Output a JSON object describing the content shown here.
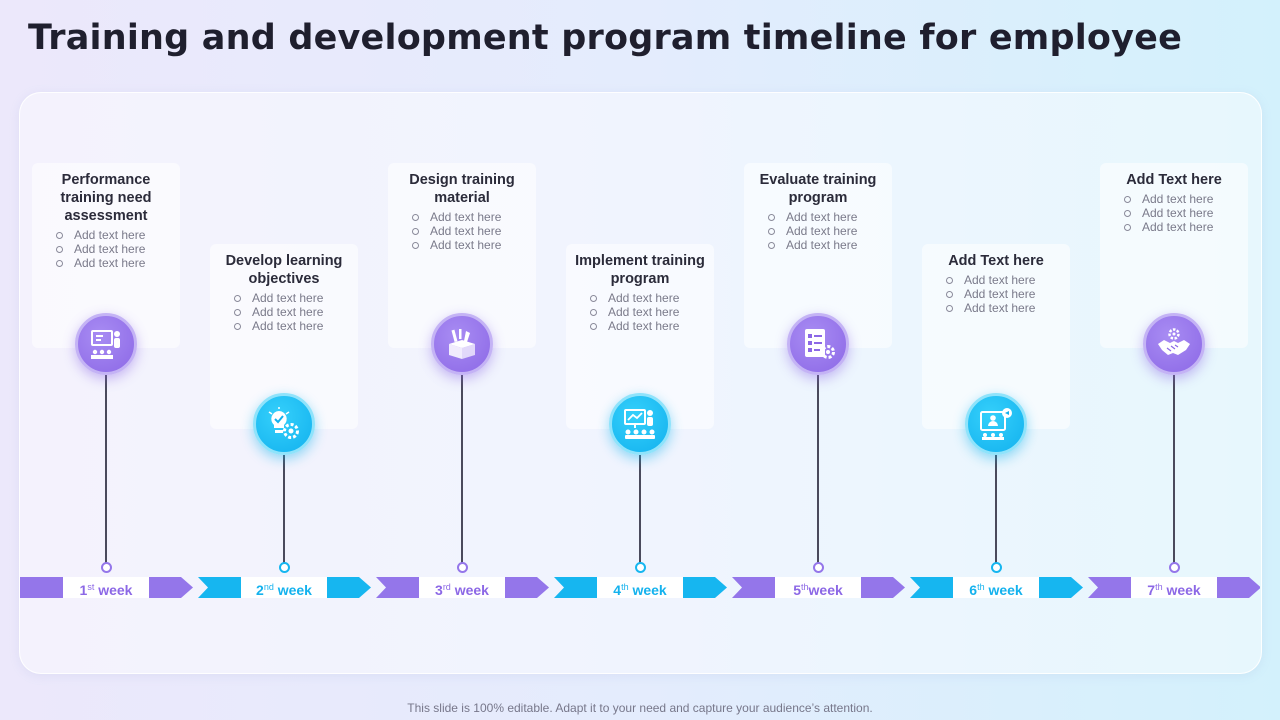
{
  "title": "Training and development program timeline for employee",
  "footer": "This slide is 100% editable. Adapt it to your need and capture your audience’s attention.",
  "colors": {
    "purple": "#8c68e6",
    "cyan": "#14b2ee"
  },
  "steps": [
    {
      "title": "Performance training need assessment",
      "bullets": [
        "Add text here",
        "Add text here",
        "Add text here"
      ],
      "week_num": "1",
      "week_sup": "st",
      "week_word": " week",
      "icon": "presentation-board-icon",
      "color": "purple"
    },
    {
      "title": "Develop learning objectives",
      "bullets": [
        "Add text here",
        "Add text here",
        "Add text here"
      ],
      "week_num": "2",
      "week_sup": "nd",
      "week_word": " week",
      "icon": "lightbulb-gear-icon",
      "color": "cyan"
    },
    {
      "title": "Design training material",
      "bullets": [
        "Add text here",
        "Add text here",
        "Add text here"
      ],
      "week_num": "3",
      "week_sup": "rd",
      "week_word": " week",
      "icon": "toolbox-icon",
      "color": "purple"
    },
    {
      "title": "Implement training program",
      "bullets": [
        "Add text here",
        "Add text here",
        "Add text here"
      ],
      "week_num": "4",
      "week_sup": "th",
      "week_word": " week",
      "icon": "trainer-audience-icon",
      "color": "cyan"
    },
    {
      "title": "Evaluate training program",
      "bullets": [
        "Add text here",
        "Add text here",
        "Add text here"
      ],
      "week_num": "5",
      "week_sup": "th",
      "week_word": "week",
      "icon": "checklist-gear-icon",
      "color": "purple"
    },
    {
      "title": "Add Text here",
      "bullets": [
        "Add text here",
        "Add text here",
        "Add text here"
      ],
      "week_num": "6",
      "week_sup": "th",
      "week_word": " week",
      "icon": "webinar-screen-icon",
      "color": "cyan"
    },
    {
      "title": "Add Text here",
      "bullets": [
        "Add text here",
        "Add text here",
        "Add text here"
      ],
      "week_num": "7",
      "week_sup": "th",
      "week_word": " week",
      "icon": "handshake-gear-icon",
      "color": "purple"
    }
  ]
}
